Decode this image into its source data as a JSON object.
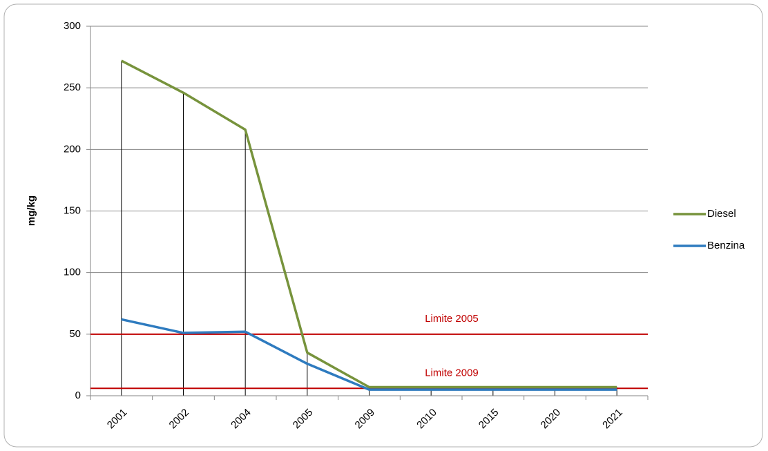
{
  "chart_data": {
    "type": "line",
    "y_label": "mg/kg",
    "categories": [
      "2001",
      "2002",
      "2004",
      "2005",
      "2009",
      "2010",
      "2015",
      "2020",
      "2021"
    ],
    "series": [
      {
        "name": "Diesel",
        "color": "#77933c",
        "values": [
          272,
          246,
          216,
          35,
          7,
          7,
          7,
          7,
          7
        ]
      },
      {
        "name": "Benzina",
        "color": "#2e7bbf",
        "values": [
          62,
          51,
          52,
          26,
          5,
          5,
          5,
          5,
          5
        ]
      }
    ],
    "reference_lines": [
      {
        "label": "Limite 2005",
        "value": 50,
        "color": "#c00000"
      },
      {
        "label": "Limite 2009",
        "value": 6,
        "color": "#c00000"
      }
    ],
    "ylim": [
      0,
      300
    ],
    "yticks": [
      0,
      50,
      100,
      150,
      200,
      250,
      300
    ],
    "grid": true,
    "legend": "right"
  }
}
